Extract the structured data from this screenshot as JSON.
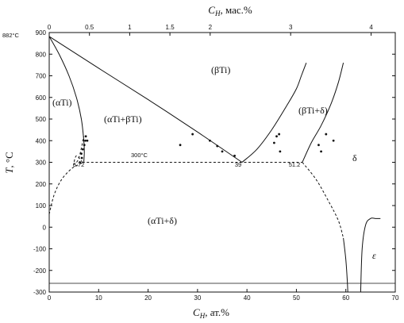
{
  "chart_data": {
    "type": "line",
    "title": "",
    "xlabel": "C",
    "xlabel_sub": "H",
    "xlabel_unit": ", ат.%",
    "x2label": "C",
    "x2label_sub": "H",
    "x2label_unit": ", мас.%",
    "ylabel": "T",
    "ylabel_unit": ", °C",
    "xlim": [
      0,
      70
    ],
    "ylim": [
      -300,
      900
    ],
    "x2lim": [
      0,
      4.3
    ],
    "x_ticks": [
      "0",
      "10",
      "20",
      "30",
      "40",
      "50",
      "60",
      "70"
    ],
    "x2_ticks": [
      "0",
      "0.5",
      "1",
      "1.5",
      "2",
      "3",
      "4"
    ],
    "y_ticks": [
      "-300",
      "-200",
      "-100",
      "0",
      "100",
      "200",
      "300",
      "400",
      "500",
      "600",
      "700",
      "800",
      "900"
    ],
    "grid": false,
    "series": [
      {
        "style": "solid",
        "x": [
          0,
          2,
          4,
          5.5,
          6.5,
          7,
          7.1,
          7
        ],
        "y": [
          882,
          800,
          700,
          600,
          500,
          400,
          350,
          300
        ]
      },
      {
        "style": "solid",
        "x": [
          0,
          10,
          20,
          30,
          39
        ],
        "y": [
          882,
          735,
          590,
          440,
          300
        ]
      },
      {
        "style": "solid",
        "x": [
          39,
          42,
          45,
          48,
          50,
          51,
          52
        ],
        "y": [
          300,
          360,
          450,
          560,
          640,
          700,
          760
        ]
      },
      {
        "style": "solid",
        "x": [
          51.2,
          53,
          55,
          57,
          58.5,
          59.5
        ],
        "y": [
          300,
          390,
          470,
          570,
          670,
          760
        ]
      },
      {
        "style": "solid",
        "x": [
          59.5,
          60,
          60.3,
          60.4
        ],
        "y": [
          -50,
          -150,
          -250,
          -300
        ]
      },
      {
        "style": "solid",
        "x": [
          63,
          63.3,
          64,
          65,
          66,
          67
        ],
        "y": [
          -300,
          -100,
          10,
          40,
          40,
          40
        ]
      },
      {
        "style": "dashed",
        "x": [
          6.72,
          51.2
        ],
        "y": [
          300,
          300
        ]
      },
      {
        "style": "dashed",
        "x": [
          0,
          1,
          2.5,
          4.5,
          6,
          6.72
        ],
        "y": [
          60,
          150,
          220,
          270,
          290,
          300
        ]
      },
      {
        "style": "dashed",
        "x": [
          51.2,
          54,
          56.5,
          58.5,
          59.5
        ],
        "y": [
          300,
          220,
          120,
          30,
          -50
        ]
      },
      {
        "style": "dashed",
        "x": [
          6.72,
          5.5,
          5,
          6,
          7
        ],
        "y": [
          300,
          330,
          290,
          320,
          420
        ]
      }
    ],
    "points": [
      {
        "x": 6.2,
        "y": 300
      },
      {
        "x": 6.5,
        "y": 340
      },
      {
        "x": 6.8,
        "y": 360
      },
      {
        "x": 7.1,
        "y": 380
      },
      {
        "x": 7.3,
        "y": 400
      },
      {
        "x": 7.7,
        "y": 400
      },
      {
        "x": 6.6,
        "y": 320
      },
      {
        "x": 7.4,
        "y": 420
      },
      {
        "x": 26.5,
        "y": 380
      },
      {
        "x": 29,
        "y": 430
      },
      {
        "x": 32.5,
        "y": 400
      },
      {
        "x": 34,
        "y": 375
      },
      {
        "x": 35,
        "y": 350
      },
      {
        "x": 37.5,
        "y": 330
      },
      {
        "x": 45.5,
        "y": 390
      },
      {
        "x": 46,
        "y": 420
      },
      {
        "x": 46.5,
        "y": 430
      },
      {
        "x": 46.7,
        "y": 350
      },
      {
        "x": 54.5,
        "y": 380
      },
      {
        "x": 55,
        "y": 350
      },
      {
        "x": 56,
        "y": 430
      },
      {
        "x": 57.5,
        "y": 400
      }
    ],
    "annotations": {
      "melting": "882°C",
      "eutectoid": "300°C",
      "c1": "6.72",
      "c2": "39",
      "c3": "51.2",
      "alpha": "(αTi)",
      "beta": "(βTi)",
      "alpha_beta": "(αTi+βTi)",
      "beta_delta": "(βTi+δ)",
      "alpha_delta": "(αTi+δ)",
      "delta": "δ",
      "epsilon": "ε"
    }
  }
}
